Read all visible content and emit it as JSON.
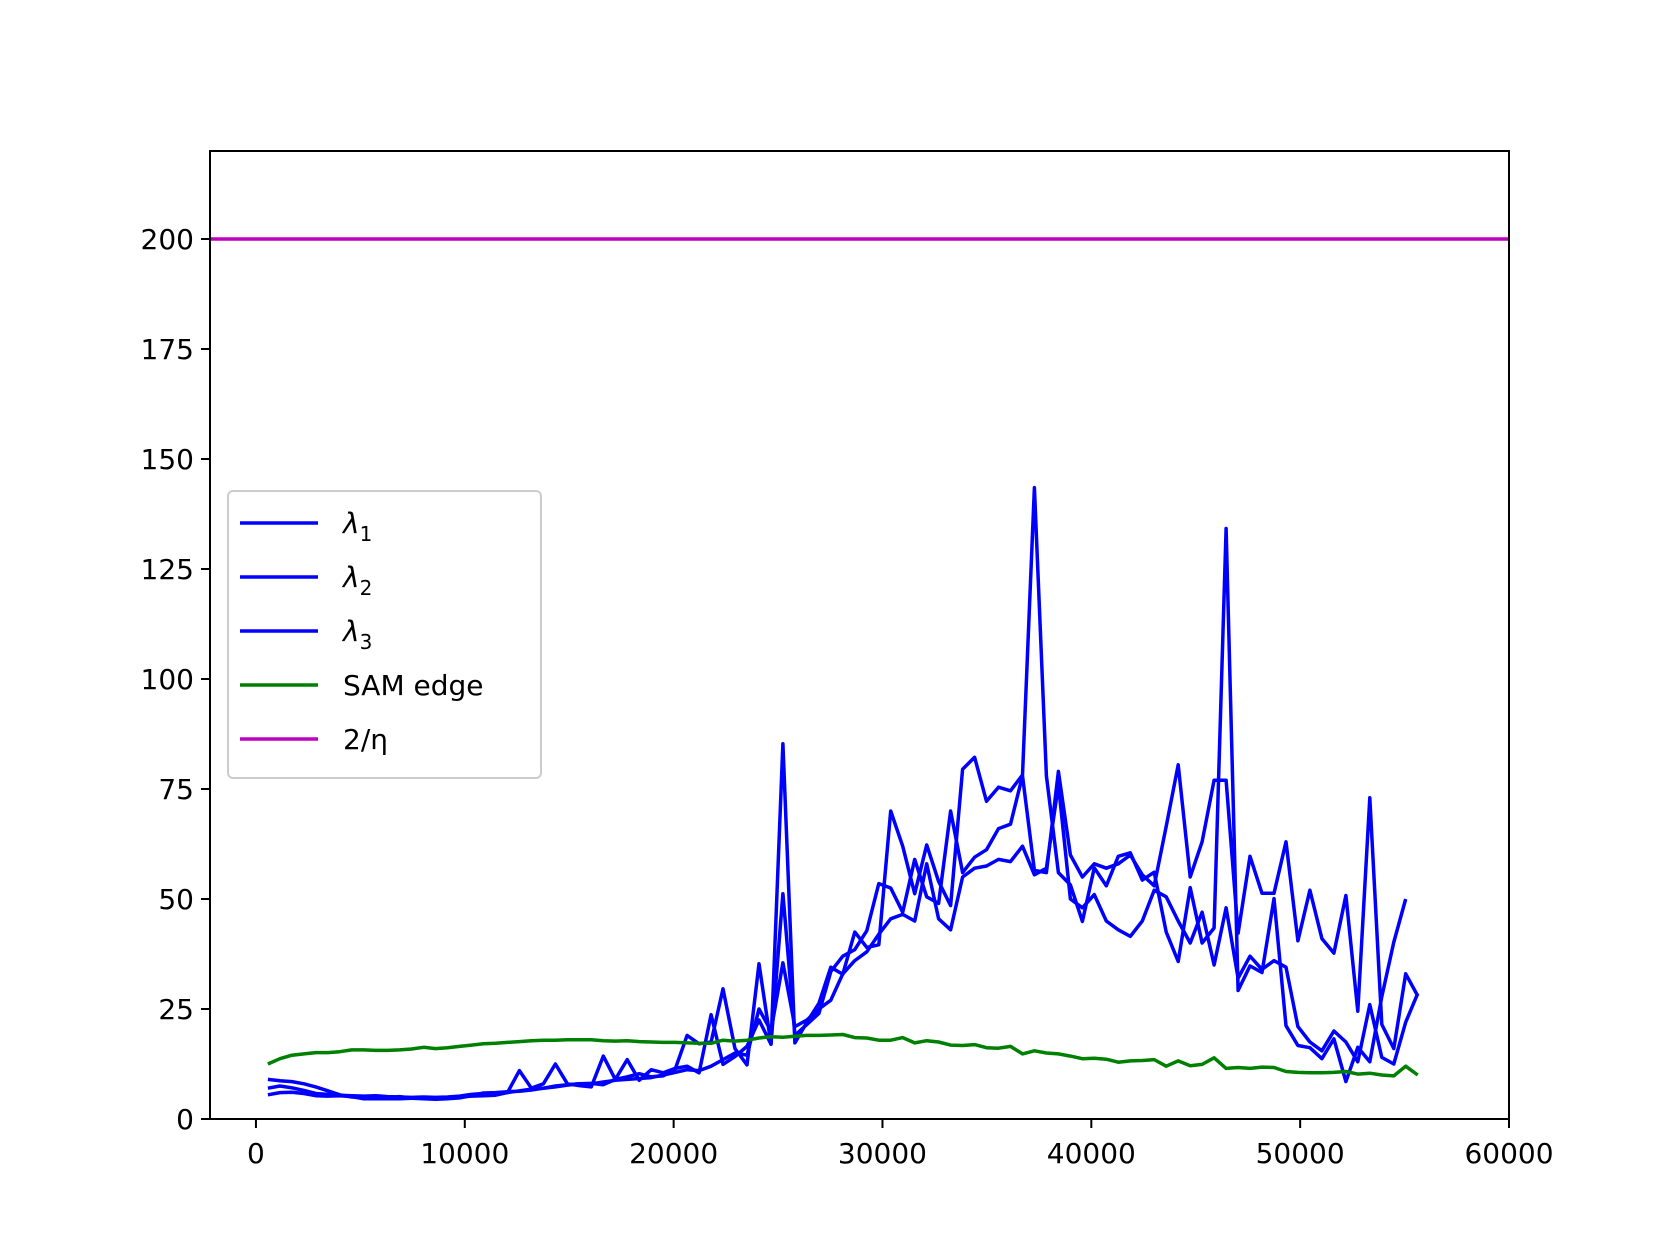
{
  "chart_data": {
    "type": "line",
    "title": "",
    "xlabel": "",
    "ylabel": "",
    "xlim": [
      -2200,
      60000
    ],
    "ylim": [
      0,
      220
    ],
    "x_ticks": [
      0,
      10000,
      20000,
      30000,
      40000,
      50000,
      60000
    ],
    "y_ticks": [
      0,
      25,
      50,
      75,
      100,
      125,
      150,
      175,
      200
    ],
    "x_tick_labels": [
      "0",
      "10000",
      "20000",
      "30000",
      "40000",
      "50000",
      "60000"
    ],
    "y_tick_labels": [
      "0",
      "25",
      "50",
      "75",
      "100",
      "125",
      "150",
      "175",
      "200"
    ],
    "grid": false,
    "legend": {
      "placement": "center-left",
      "entries": [
        {
          "label": "λ1",
          "base": "λ",
          "sub": "1",
          "color": "#0000ff"
        },
        {
          "label": "λ2",
          "base": "λ",
          "sub": "2",
          "color": "#0000ff"
        },
        {
          "label": "λ3",
          "base": "λ",
          "sub": "3",
          "color": "#0000ff"
        },
        {
          "label": "SAM edge",
          "base": "SAM edge",
          "sub": "",
          "color": "#008000"
        },
        {
          "label": "2/η",
          "base": "2/η",
          "sub": "",
          "color": "#bf00bf"
        }
      ]
    },
    "series": [
      {
        "name": "λ1",
        "color": "#0000ff",
        "x": [
          573,
          1147,
          1720,
          2294,
          2867,
          3441,
          4014,
          4588,
          5161,
          5735,
          6308,
          6882,
          7455,
          8029,
          8602,
          9176,
          9749,
          10323,
          10896,
          11470,
          12043,
          12617,
          13190,
          13764,
          14337,
          14911,
          15484,
          16058,
          16631,
          17205,
          17778,
          18352,
          18925,
          19499,
          20072,
          20646,
          21219,
          21793,
          22366,
          22940,
          23513,
          24087,
          24660,
          25234,
          25807,
          26381,
          26954,
          27528,
          28101,
          28675,
          29248,
          29822,
          30395,
          30969,
          31542,
          32116,
          32689,
          33263,
          33836,
          34410,
          34983,
          35557,
          36130,
          36704,
          37277,
          37851,
          38424,
          38998,
          39571,
          40145,
          40718,
          41292,
          41865,
          42439,
          43012,
          43586,
          44159,
          44733,
          45306,
          45880,
          46453,
          47027,
          47600,
          48174,
          48747,
          49321,
          49894,
          50468,
          51041,
          51615,
          52188,
          52762,
          53335,
          53909,
          54482,
          55056,
          55629,
          56203,
          56776,
          57350
        ],
        "values": [
          9.0,
          8.7,
          8.5,
          8.0,
          7.3,
          6.4,
          5.5,
          5.0,
          5.0,
          4.8,
          4.9,
          5.1,
          4.7,
          4.6,
          4.5,
          4.6,
          4.8,
          5.3,
          5.9,
          6.0,
          6.2,
          6.3,
          6.6,
          7.0,
          7.3,
          7.7,
          8.0,
          8.1,
          7.8,
          9.0,
          9.6,
          10.3,
          9.6,
          9.8,
          11.3,
          19.0,
          17.1,
          17.5,
          29.6,
          16.0,
          12.3,
          35.3,
          17.0,
          85.3,
          17.3,
          22.0,
          26.3,
          34.5,
          32.9,
          42.5,
          39.0,
          39.6,
          70.0,
          62.0,
          51.2,
          62.3,
          54.0,
          48.5,
          79.5,
          82.2,
          72.2,
          75.4,
          74.6,
          78.2,
          143.5,
          78.0,
          56.0,
          53.2,
          44.9,
          57.1,
          53.0,
          59.7,
          60.5,
          54.3,
          56.1,
          42.5,
          35.8,
          52.6,
          40.0,
          43.4,
          134.2,
          29.2,
          34.8,
          33.3,
          50.1,
          21.2,
          16.7,
          16.2,
          13.7,
          18.2,
          8.5,
          16.3,
          13.0,
          27.8,
          40.2,
          50.0,
          null,
          null,
          null,
          null
        ]
      },
      {
        "name": "λ2",
        "color": "#0000ff",
        "x": [
          573,
          1147,
          1720,
          2294,
          2867,
          3441,
          4014,
          4588,
          5161,
          5735,
          6308,
          6882,
          7455,
          8029,
          8602,
          9176,
          9749,
          10323,
          10896,
          11470,
          12043,
          12617,
          13190,
          13764,
          14337,
          14911,
          15484,
          16058,
          16631,
          17205,
          17778,
          18352,
          18925,
          19499,
          20072,
          20646,
          21219,
          21793,
          22366,
          22940,
          23513,
          24087,
          24660,
          25234,
          25807,
          26381,
          26954,
          27528,
          28101,
          28675,
          29248,
          29822,
          30395,
          30969,
          31542,
          32116,
          32689,
          33263,
          33836,
          34410,
          34983,
          35557,
          36130,
          36704,
          37277,
          37851,
          38424,
          38998,
          39571,
          40145,
          40718,
          41292,
          41865,
          42439,
          43012,
          43586,
          44159,
          44733,
          45306,
          45880,
          46453,
          47027,
          47600,
          48174,
          48747,
          49321,
          49894,
          50468,
          51041,
          51615,
          52188,
          52762,
          53335,
          53909,
          54482,
          55056,
          55629,
          56203,
          56776,
          57350
        ],
        "values": [
          5.5,
          6.0,
          6.1,
          5.8,
          5.3,
          5.2,
          5.3,
          5.1,
          4.6,
          4.6,
          4.6,
          4.6,
          4.7,
          4.8,
          4.6,
          4.7,
          5.0,
          5.2,
          5.3,
          5.4,
          6.0,
          11.0,
          7.0,
          8.0,
          12.5,
          8.0,
          7.6,
          7.3,
          14.3,
          9.0,
          13.5,
          8.8,
          11.2,
          10.5,
          11.5,
          12.0,
          10.5,
          23.7,
          12.4,
          14.2,
          16.5,
          22.5,
          17.0,
          51.2,
          19.0,
          21.5,
          24.0,
          33.5,
          37.0,
          38.5,
          42.8,
          53.5,
          52.5,
          47.0,
          59.0,
          50.5,
          49.0,
          70.0,
          56.0,
          59.5,
          61.2,
          66.0,
          67.0,
          78.0,
          56.5,
          56.0,
          79.0,
          60.0,
          55.0,
          58.0,
          57.0,
          58.0,
          60.0,
          55.5,
          53.0,
          66.5,
          80.5,
          55.0,
          63.0,
          77.0,
          77.0,
          42.2,
          59.7,
          51.3,
          51.3,
          63.0,
          40.5,
          52.0,
          41.0,
          37.7,
          50.8,
          24.5,
          73.0,
          21.5,
          16.0,
          33.0,
          28.0,
          null,
          null,
          null
        ]
      },
      {
        "name": "λ3",
        "color": "#0000ff",
        "x": [
          573,
          1147,
          1720,
          2294,
          2867,
          3441,
          4014,
          4588,
          5161,
          5735,
          6308,
          6882,
          7455,
          8029,
          8602,
          9176,
          9749,
          10323,
          10896,
          11470,
          12043,
          12617,
          13190,
          13764,
          14337,
          14911,
          15484,
          16058,
          16631,
          17205,
          17778,
          18352,
          18925,
          19499,
          20072,
          20646,
          21219,
          21793,
          22366,
          22940,
          23513,
          24087,
          24660,
          25234,
          25807,
          26381,
          26954,
          27528,
          28101,
          28675,
          29248,
          29822,
          30395,
          30969,
          31542,
          32116,
          32689,
          33263,
          33836,
          34410,
          34983,
          35557,
          36130,
          36704,
          37277,
          37851,
          38424,
          38998,
          39571,
          40145,
          40718,
          41292,
          41865,
          42439,
          43012,
          43586,
          44159,
          44733,
          45306,
          45880,
          46453,
          47027,
          47600,
          48174,
          48747,
          49321,
          49894,
          50468,
          51041,
          51615,
          52188,
          52762,
          53335,
          53909,
          54482,
          55056,
          55629,
          56203,
          56776,
          57350
        ],
        "values": [
          7.0,
          7.5,
          7.1,
          6.5,
          5.8,
          5.6,
          5.4,
          5.3,
          5.2,
          5.3,
          5.1,
          5.0,
          4.9,
          5.0,
          4.9,
          5.0,
          5.2,
          5.6,
          5.8,
          5.9,
          6.0,
          6.4,
          6.8,
          7.0,
          7.5,
          7.8,
          8.0,
          8.0,
          8.4,
          8.8,
          9.0,
          9.2,
          9.4,
          10.0,
          10.6,
          11.2,
          11.0,
          12.0,
          13.5,
          15.0,
          14.5,
          25.0,
          20.0,
          35.5,
          21.0,
          22.5,
          25.0,
          27.0,
          33.0,
          36.0,
          38.0,
          42.0,
          45.5,
          46.5,
          45.0,
          58.0,
          45.5,
          43.0,
          55.0,
          57.0,
          57.5,
          59.0,
          58.5,
          62.0,
          55.5,
          57.0,
          76.0,
          50.0,
          48.0,
          51.0,
          45.0,
          43.0,
          41.5,
          45.0,
          52.0,
          50.5,
          45.0,
          40.0,
          47.0,
          35.0,
          48.0,
          32.0,
          37.0,
          34.0,
          36.0,
          34.5,
          21.0,
          17.5,
          15.5,
          20.0,
          17.5,
          13.0,
          26.0,
          14.0,
          12.5,
          22.0,
          28.5,
          null,
          null,
          null
        ]
      },
      {
        "name": "SAM edge",
        "color": "#008000",
        "x": [
          573,
          1147,
          1720,
          2294,
          2867,
          3441,
          4014,
          4588,
          5161,
          5735,
          6308,
          6882,
          7455,
          8029,
          8602,
          9176,
          9749,
          10323,
          10896,
          11470,
          12043,
          12617,
          13190,
          13764,
          14337,
          14911,
          15484,
          16058,
          16631,
          17205,
          17778,
          18352,
          18925,
          19499,
          20072,
          20646,
          21219,
          21793,
          22366,
          22940,
          23513,
          24087,
          24660,
          25234,
          25807,
          26381,
          26954,
          27528,
          28101,
          28675,
          29248,
          29822,
          30395,
          30969,
          31542,
          32116,
          32689,
          33263,
          33836,
          34410,
          34983,
          35557,
          36130,
          36704,
          37277,
          37851,
          38424,
          38998,
          39571,
          40145,
          40718,
          41292,
          41865,
          42439,
          43012,
          43586,
          44159,
          44733,
          45306,
          45880,
          46453,
          47027,
          47600,
          48174,
          48747,
          49321,
          49894,
          50468,
          51041,
          51615,
          52188,
          52762,
          53335,
          53909,
          54482,
          55056,
          55629,
          56203,
          56776,
          57350
        ],
        "values": [
          12.5,
          13.7,
          14.5,
          14.8,
          15.1,
          15.1,
          15.3,
          15.7,
          15.7,
          15.6,
          15.6,
          15.7,
          15.9,
          16.3,
          16.0,
          16.2,
          16.5,
          16.8,
          17.1,
          17.2,
          17.4,
          17.6,
          17.8,
          17.9,
          17.9,
          18.0,
          18.0,
          18.0,
          17.8,
          17.7,
          17.8,
          17.6,
          17.5,
          17.4,
          17.4,
          17.3,
          17.2,
          17.2,
          17.9,
          17.7,
          17.9,
          18.4,
          18.7,
          18.6,
          18.8,
          19.0,
          19.0,
          19.1,
          19.2,
          18.5,
          18.4,
          17.9,
          17.9,
          18.5,
          17.3,
          17.8,
          17.5,
          16.8,
          16.7,
          16.9,
          16.2,
          16.1,
          16.5,
          14.8,
          15.5,
          15.0,
          14.8,
          14.3,
          13.7,
          13.8,
          13.6,
          12.9,
          13.2,
          13.3,
          13.5,
          12.0,
          13.2,
          12.1,
          12.4,
          13.9,
          11.5,
          11.7,
          11.5,
          11.8,
          11.7,
          10.8,
          10.6,
          10.5,
          10.5,
          10.6,
          10.8,
          10.2,
          10.4,
          10.0,
          9.8,
          12.0,
          10.0,
          null,
          null,
          null
        ]
      },
      {
        "name": "2/η",
        "color": "#bf00bf",
        "x": [
          -2200,
          60000
        ],
        "values": [
          200,
          200
        ]
      }
    ]
  }
}
